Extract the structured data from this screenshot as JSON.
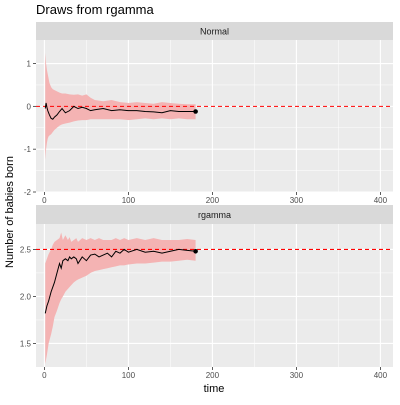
{
  "chart_data": {
    "type": "line",
    "title": "Draws from rgamma",
    "xlabel": "time",
    "ylabel": "Number of babies born",
    "grid": true,
    "legend": "none",
    "xlim": [
      -10,
      415
    ],
    "x_ticks": [
      0,
      100,
      200,
      300,
      400
    ],
    "colors": {
      "panel_background": "#ebebeb",
      "strip_background": "#d9d9d9",
      "gridline": "#ffffff",
      "ribbon": "#f4b3b3",
      "line": "#000000",
      "reference_line": "#ff0000"
    },
    "panels": [
      {
        "strip": "Normal",
        "ylim": [
          -2.0,
          1.55
        ],
        "y_ticks": [
          -2,
          -1,
          0,
          1
        ],
        "reference_y": 0,
        "series": [
          {
            "x": [
              1,
              2,
              3,
              4,
              5,
              6,
              8,
              10,
              12,
              15,
              18,
              21,
              25,
              30,
              35,
              40,
              45,
              50,
              55,
              60,
              70,
              80,
              90,
              100,
              110,
              120,
              130,
              140,
              150,
              160,
              170,
              180
            ],
            "y": [
              -0.05,
              0.08,
              -0.02,
              -0.1,
              -0.15,
              -0.2,
              -0.28,
              -0.3,
              -0.25,
              -0.2,
              -0.12,
              -0.05,
              -0.15,
              -0.1,
              0.0,
              -0.05,
              -0.02,
              -0.05,
              -0.1,
              -0.08,
              -0.05,
              -0.1,
              -0.08,
              -0.1,
              -0.1,
              -0.12,
              -0.13,
              -0.15,
              -0.1,
              -0.12,
              -0.12,
              -0.12
            ],
            "lower": [
              -1.25,
              -1.0,
              -0.85,
              -0.75,
              -0.7,
              -0.68,
              -0.65,
              -0.6,
              -0.55,
              -0.5,
              -0.45,
              -0.42,
              -0.4,
              -0.38,
              -0.35,
              -0.33,
              -0.32,
              -0.32,
              -0.3,
              -0.3,
              -0.3,
              -0.3,
              -0.3,
              -0.32,
              -0.3,
              -0.28,
              -0.3,
              -0.28,
              -0.3,
              -0.28,
              -0.3,
              -0.3
            ],
            "upper": [
              1.25,
              1.0,
              0.85,
              0.75,
              0.65,
              0.55,
              0.45,
              0.4,
              0.38,
              0.35,
              0.32,
              0.3,
              0.3,
              0.28,
              0.27,
              0.28,
              0.25,
              0.28,
              0.2,
              0.15,
              0.12,
              0.15,
              0.1,
              0.08,
              0.1,
              0.08,
              0.06,
              0.1,
              0.08,
              0.06,
              0.05,
              0.05
            ],
            "endpoint": {
              "x": 180,
              "y": -0.12
            }
          }
        ]
      },
      {
        "strip": "rgamma",
        "ylim": [
          1.25,
          2.77
        ],
        "y_ticks": [
          1.5,
          2.0,
          2.5
        ],
        "reference_y": 2.5,
        "series": [
          {
            "x": [
              1,
              3,
              5,
              8,
              10,
              12,
              15,
              18,
              20,
              22,
              25,
              28,
              30,
              32,
              35,
              38,
              40,
              45,
              50,
              55,
              60,
              65,
              70,
              75,
              80,
              85,
              90,
              95,
              100,
              110,
              120,
              130,
              140,
              150,
              160,
              170,
              180
            ],
            "y": [
              1.82,
              1.9,
              1.95,
              2.05,
              2.1,
              2.15,
              2.25,
              2.35,
              2.3,
              2.38,
              2.4,
              2.38,
              2.42,
              2.4,
              2.42,
              2.4,
              2.35,
              2.42,
              2.38,
              2.44,
              2.45,
              2.42,
              2.44,
              2.46,
              2.42,
              2.48,
              2.46,
              2.5,
              2.47,
              2.5,
              2.47,
              2.48,
              2.46,
              2.48,
              2.5,
              2.49,
              2.48
            ],
            "lower": [
              1.28,
              1.38,
              1.5,
              1.6,
              1.68,
              1.78,
              1.85,
              1.93,
              1.97,
              2.0,
              2.05,
              2.08,
              2.1,
              2.12,
              2.15,
              2.17,
              2.18,
              2.2,
              2.22,
              2.25,
              2.27,
              2.28,
              2.29,
              2.3,
              2.31,
              2.32,
              2.33,
              2.33,
              2.34,
              2.35,
              2.35,
              2.36,
              2.37,
              2.37,
              2.38,
              2.39,
              2.38
            ],
            "upper": [
              2.35,
              2.4,
              2.45,
              2.5,
              2.55,
              2.58,
              2.6,
              2.62,
              2.68,
              2.6,
              2.65,
              2.6,
              2.63,
              2.58,
              2.6,
              2.62,
              2.58,
              2.62,
              2.6,
              2.62,
              2.6,
              2.62,
              2.6,
              2.6,
              2.6,
              2.62,
              2.6,
              2.62,
              2.6,
              2.62,
              2.6,
              2.62,
              2.6,
              2.6,
              2.6,
              2.61,
              2.6
            ],
            "endpoint": {
              "x": 180,
              "y": 2.48
            }
          }
        ]
      }
    ]
  }
}
